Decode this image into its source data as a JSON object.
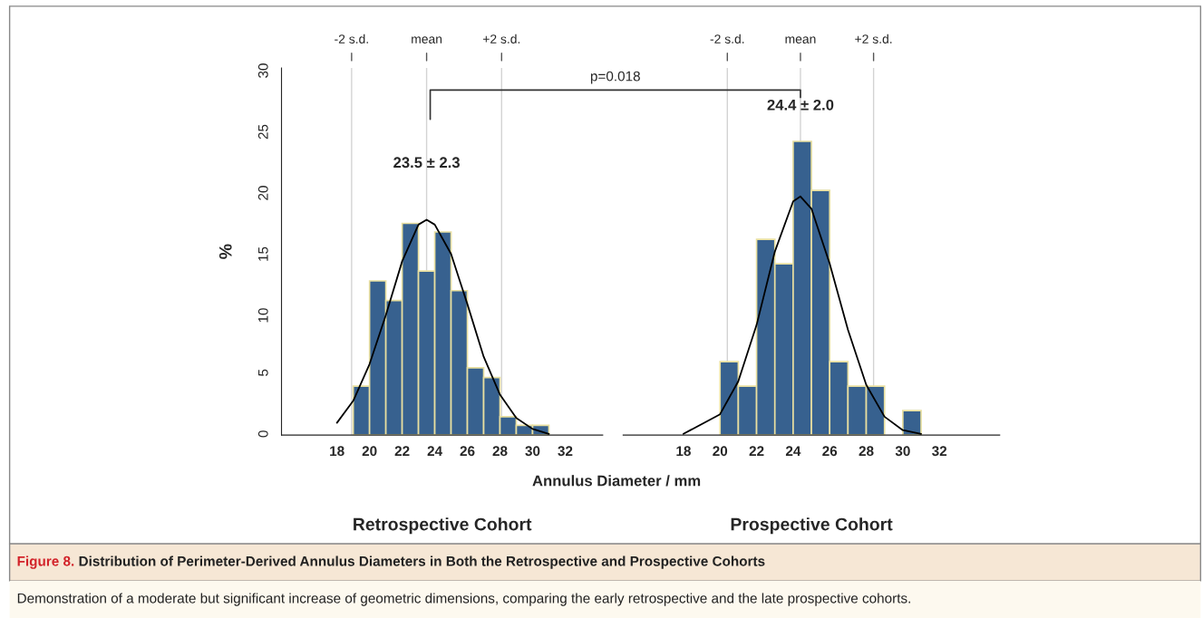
{
  "chart_data": [
    {
      "type": "histogram",
      "title": "Retrospective Cohort",
      "xlabel": "Annulus Diameter / mm",
      "ylabel": "%",
      "bins": [
        19,
        20,
        21,
        22,
        23,
        24,
        25,
        26,
        27,
        28,
        29,
        30,
        31
      ],
      "values": [
        4,
        12.6,
        11,
        17.3,
        13.4,
        16.6,
        11.8,
        5.5,
        4.7,
        1.5,
        0.8,
        0.8
      ],
      "color": "#37618f",
      "series": [
        {
          "type": "line",
          "color": "#000000",
          "x": [
            18,
            19,
            20,
            21,
            22,
            23,
            23.5,
            24,
            25,
            26,
            27,
            28,
            29,
            30,
            31
          ],
          "values": [
            1.0,
            2.8,
            5.8,
            9.8,
            14.2,
            17.2,
            17.6,
            17.2,
            14.8,
            10.7,
            6.4,
            3.3,
            1.4,
            0.5,
            0.1
          ]
        }
      ],
      "xlim": [
        14.6,
        34.3
      ],
      "xticks": [
        18,
        20,
        22,
        24,
        26,
        28,
        30,
        32
      ],
      "ylim": [
        0,
        30
      ],
      "yticks": [
        0,
        5,
        10,
        15,
        20,
        25,
        30
      ],
      "ref_lines": [
        {
          "axis": "x",
          "value": 18.9,
          "label": "-2 s.d.",
          "color": "#d3d3d3"
        },
        {
          "axis": "x",
          "value": 23.5,
          "label": "mean",
          "color": "#d3d3d3"
        },
        {
          "axis": "x",
          "value": 28.1,
          "label": "+2 s.d.",
          "color": "#d3d3d3"
        }
      ],
      "annotations": [
        {
          "text": "23.5 ± 2.3",
          "x": 23.5,
          "y": 21.6
        },
        "p=0.018",
        "Figure 8. ",
        "Distribution of Perimeter-Derived Annulus Diameters in Both the Retrospective and Prospective Cohorts",
        "Demonstration of a moderate but significant increase of geometric dimensions, comparing the early retrospective and the late prospective cohorts."
      ],
      "grid": false
    },
    {
      "type": "histogram",
      "title": "Prospective Cohort",
      "bins": [
        20,
        21,
        22,
        23,
        24,
        25,
        26,
        27,
        28,
        29,
        30,
        31
      ],
      "values": [
        6,
        4,
        16,
        14,
        24,
        20,
        6,
        4,
        4,
        0,
        2
      ],
      "color": "#37618f",
      "series": [
        {
          "type": "line",
          "color": "#000000",
          "x": [
            18,
            20,
            21,
            22,
            23,
            24,
            24.4,
            25,
            26,
            27,
            28,
            29,
            30,
            31
          ],
          "values": [
            0.1,
            1.7,
            4.4,
            9.0,
            15.0,
            19.1,
            19.5,
            18.5,
            14.0,
            8.6,
            4.1,
            1.5,
            0.4,
            0.1
          ]
        }
      ],
      "xlim": [
        14.7,
        35.3
      ],
      "xticks": [
        18,
        20,
        22,
        24,
        26,
        28,
        30,
        32
      ],
      "ylim": [
        0,
        30
      ],
      "tick_labels": "x",
      "ref_lines": [
        {
          "axis": "x",
          "value": 20.4,
          "label": "-2 s.d.",
          "color": "#d3d3d3"
        },
        {
          "axis": "x",
          "value": 24.4,
          "label": "mean",
          "color": "#d3d3d3"
        },
        {
          "axis": "x",
          "value": 28.4,
          "label": "+2 s.d.",
          "color": "#d3d3d3"
        }
      ],
      "annotations": [
        {
          "text": "24.4 ± 2.0",
          "x": 24.4,
          "y": 26.3
        }
      ],
      "grid": false
    }
  ]
}
